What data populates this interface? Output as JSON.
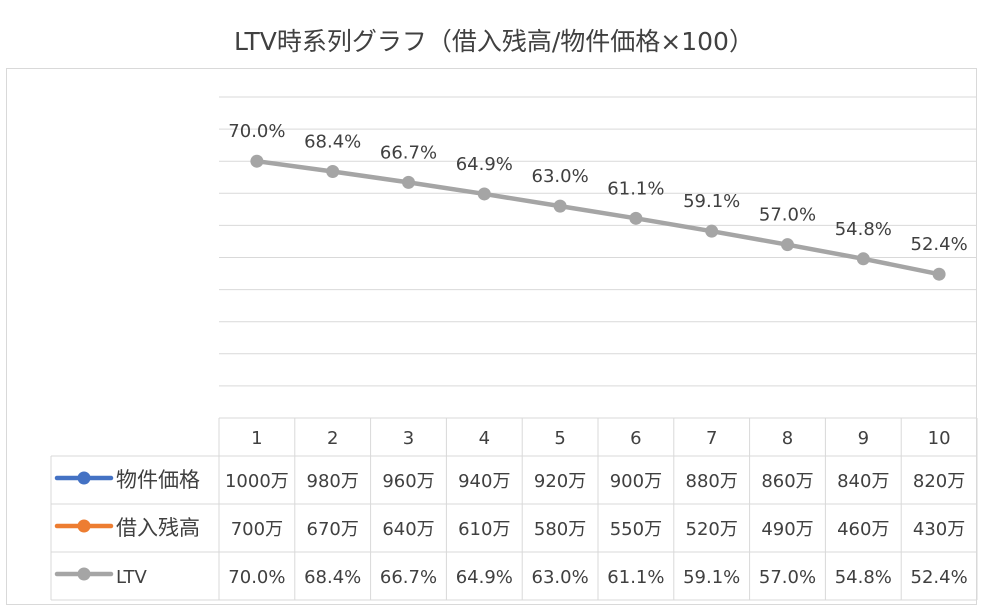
{
  "chart_data": {
    "type": "line",
    "title": "LTV時系列グラフ（借入残高/物件価格×100）",
    "categories": [
      "1",
      "2",
      "3",
      "4",
      "5",
      "6",
      "7",
      "8",
      "9",
      "10"
    ],
    "series": [
      {
        "name": "物件価格",
        "color": "#4472c4",
        "values": [
          1000,
          980,
          960,
          940,
          920,
          900,
          880,
          860,
          840,
          820
        ],
        "display": [
          "1000万",
          "980万",
          "960万",
          "940万",
          "920万",
          "900万",
          "880万",
          "860万",
          "840万",
          "820万"
        ]
      },
      {
        "name": "借入残高",
        "color": "#ed7d31",
        "values": [
          700,
          670,
          640,
          610,
          580,
          550,
          520,
          490,
          460,
          430
        ],
        "display": [
          "700万",
          "670万",
          "640万",
          "610万",
          "580万",
          "550万",
          "520万",
          "490万",
          "460万",
          "430万"
        ]
      },
      {
        "name": "LTV",
        "color": "#a5a5a5",
        "values": [
          70.0,
          68.4,
          66.7,
          64.9,
          63.0,
          61.1,
          59.1,
          57.0,
          54.8,
          52.4
        ],
        "display": [
          "70.0%",
          "68.4%",
          "66.7%",
          "64.9%",
          "63.0%",
          "61.1%",
          "59.1%",
          "57.0%",
          "54.8%",
          "52.4%"
        ]
      }
    ],
    "ylim": [
      30,
      80
    ],
    "grid": true,
    "legend": "data-table"
  }
}
